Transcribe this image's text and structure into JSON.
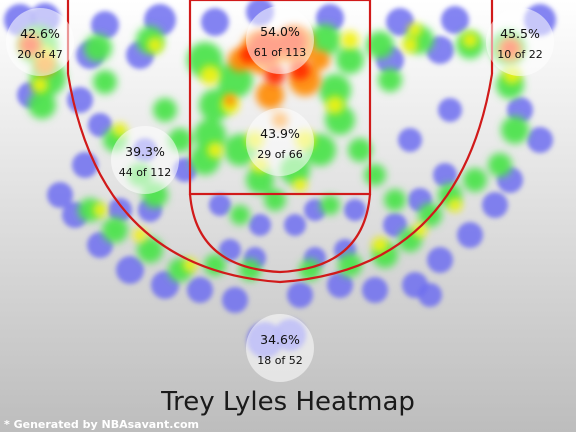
{
  "chart_data": {
    "type": "heatmap",
    "title": "Trey Lyles Heatmap",
    "credit": "* Generated by NBAsavant.com",
    "colors": {
      "background_top": "#ffffff",
      "background_bottom": "#bdbdbd",
      "court_lines": "#d11a1a",
      "low": "#6f6ff0",
      "mid": "#4de34d",
      "high_mid": "#f2f20a",
      "high": "#ff2a00"
    },
    "zones": [
      {
        "id": "left-corner",
        "pct": "42.6%",
        "made_of": "20 of 47"
      },
      {
        "id": "restricted-paint",
        "pct": "54.0%",
        "made_of": "61 of 113"
      },
      {
        "id": "right-corner",
        "pct": "45.5%",
        "made_of": "10 of 22"
      },
      {
        "id": "left-midrange",
        "pct": "39.3%",
        "made_of": "44 of 112"
      },
      {
        "id": "paint-non-ra",
        "pct": "43.9%",
        "made_of": "29 of 66"
      },
      {
        "id": "top-key-three",
        "pct": "34.6%",
        "made_of": "18 of 52"
      }
    ]
  }
}
